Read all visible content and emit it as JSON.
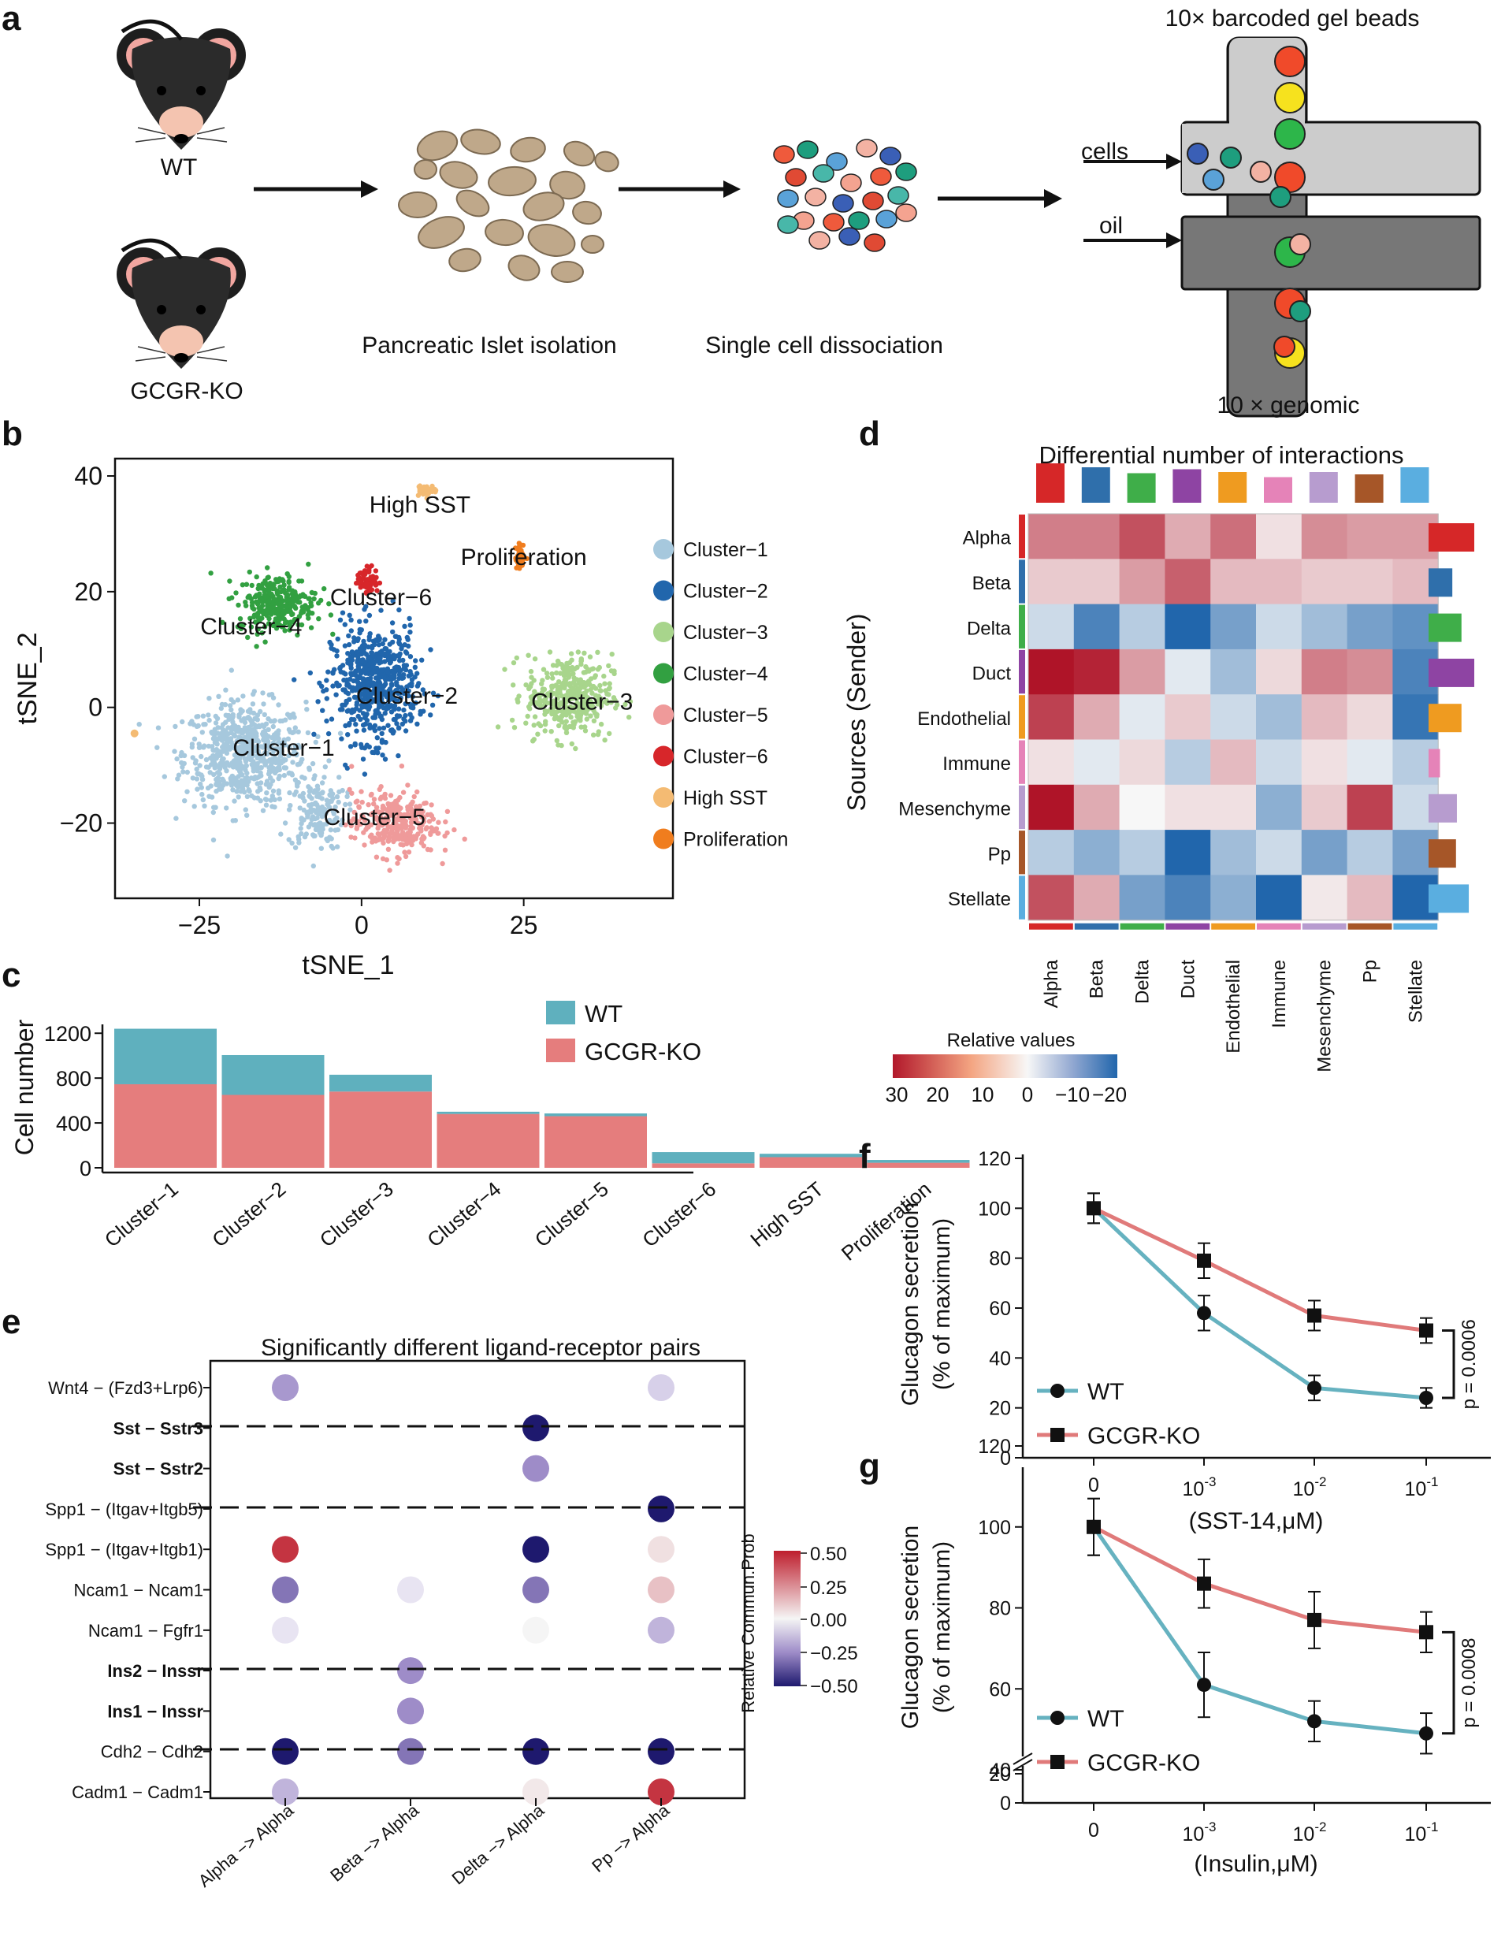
{
  "panel_labels": [
    "a",
    "b",
    "c",
    "d",
    "e",
    "f",
    "g"
  ],
  "colors": {
    "cluster_1": "#a6c8dd",
    "cluster_2": "#2166ac",
    "cluster_3": "#a8d58c",
    "cluster_4": "#32a041",
    "cluster_5": "#ef9a9a",
    "cluster_6": "#d7262a",
    "high_sst": "#f4bb73",
    "proliferation": "#f07d1e",
    "wt": "#5fb0be",
    "gcgr_ko": "#e57d7d",
    "wt_line": "#66b2c0",
    "ko_line": "#e07a7a"
  },
  "panel_a": {
    "labels": {
      "wt": "WT",
      "ko": "GCGR-KO",
      "islet": "Pancreatic Islet isolation",
      "single": "Single cell dissociation",
      "beads": "10× barcoded gel beads",
      "genomic": "10 × genomic",
      "cells": "cells",
      "oil": "oil"
    }
  },
  "panel_b": {
    "chart_data": {
      "type": "scatter",
      "xlabel": "tSNE_1",
      "ylabel": "tSNE_2",
      "xticks": [
        "−25",
        "0",
        "25"
      ],
      "yticks": [
        "40",
        "20",
        "0",
        "−20"
      ],
      "xlim": [
        -38,
        48
      ],
      "ylim": [
        -33,
        43
      ],
      "cluster_labels": [
        "Cluster−1",
        "Cluster−2",
        "Cluster−3",
        "Cluster−4",
        "Cluster−5",
        "Cluster−6",
        "High SST",
        "Proliferation"
      ],
      "legend": [
        "Cluster−1",
        "Cluster−2",
        "Cluster−3",
        "Cluster−4",
        "Cluster−5",
        "Cluster−6",
        "High SST",
        "Proliferation"
      ]
    }
  },
  "panel_c": {
    "chart_data": {
      "type": "bar",
      "ylabel": "Cell number",
      "yticks": [
        "1200",
        "800",
        "400",
        "0"
      ],
      "ylim": [
        0,
        1300
      ],
      "categories": [
        "Cluster−1",
        "Cluster−2",
        "Cluster−3",
        "Cluster−4",
        "Cluster−5",
        "Cluster−6",
        "High SST",
        "Proliferation"
      ],
      "series": [
        {
          "name": "GCGR-KO",
          "values": [
            745,
            650,
            680,
            480,
            460,
            40,
            95,
            45
          ]
        },
        {
          "name": "WT",
          "values": [
            495,
            355,
            150,
            20,
            25,
            100,
            30,
            25
          ]
        }
      ],
      "stacked": true,
      "legend": [
        "WT",
        "GCGR-KO"
      ]
    }
  },
  "panel_d": {
    "chart_data": {
      "type": "heatmap",
      "title": "Differential number of interactions",
      "ylabel": "Sources (Sender)",
      "rows": [
        "Alpha",
        "Beta",
        "Delta",
        "Duct",
        "Endothelial",
        "Immune",
        "Mesenchyme",
        "Pp",
        "Stellate"
      ],
      "cols": [
        "Alpha",
        "Beta",
        "Delta",
        "Duct",
        "Endothelial",
        "Immune",
        "Mesenchyme",
        "Pp",
        "Stellate"
      ],
      "values": [
        [
          16,
          16,
          22,
          10,
          18,
          3,
          14,
          12,
          12
        ],
        [
          6,
          6,
          12,
          20,
          8,
          8,
          6,
          6,
          8
        ],
        [
          -4,
          -16,
          -6,
          -20,
          -12,
          -4,
          -8,
          -12,
          -14
        ],
        [
          32,
          28,
          12,
          -2,
          -8,
          4,
          16,
          14,
          -16
        ],
        [
          24,
          10,
          -2,
          6,
          -4,
          -8,
          8,
          4,
          -18
        ],
        [
          3,
          -2,
          4,
          -6,
          8,
          -4,
          3,
          -2,
          -6
        ],
        [
          32,
          10,
          0,
          3,
          3,
          -10,
          6,
          24,
          -4
        ],
        [
          -6,
          -10,
          -6,
          -20,
          -8,
          -4,
          -12,
          -6,
          -12
        ],
        [
          22,
          10,
          -12,
          -16,
          -10,
          -22,
          2,
          8,
          -20
        ]
      ],
      "row_sums": [
        1.0,
        0.52,
        0.72,
        1.0,
        0.72,
        0.25,
        0.62,
        0.6,
        0.88
      ],
      "col_sums": [
        1.0,
        0.9,
        0.75,
        0.85,
        0.78,
        0.65,
        0.78,
        0.72,
        0.9
      ],
      "legend_title": "Relative values",
      "legend_ticks": [
        "30",
        "20",
        "10",
        "0",
        "−10",
        "−20"
      ],
      "range": [
        30,
        -20
      ],
      "group_colors": [
        "#d62728",
        "#2f6fab",
        "#3fae49",
        "#8e44a3",
        "#ef9b20",
        "#e583b8",
        "#b79ccf",
        "#a65628",
        "#5aaee0"
      ]
    }
  },
  "panel_e": {
    "chart_data": {
      "type": "scatter",
      "title": "Significantly different ligand-receptor pairs",
      "rows": [
        "Wnt4  − (Fzd3+Lrp6)",
        "Sst  − Sstr3",
        "Sst  − Sstr2",
        "Spp1  − (Itgav+Itgb5)",
        "Spp1  − (Itgav+Itgb1)",
        "Ncam1  − Ncam1",
        "Ncam1  − Fgfr1",
        "Ins2  − Inssr",
        "Ins1  − Inssr",
        "Cdh2  − Cdh2",
        "Cadm1  − Cadm1"
      ],
      "bold_rows": [
        false,
        true,
        true,
        false,
        false,
        false,
        false,
        true,
        true,
        false,
        false
      ],
      "cols": [
        "Alpha −> Alpha",
        "Beta −> Alpha",
        "Delta −> Alpha",
        "Pp −> Alpha"
      ],
      "values": [
        [
          -0.22,
          null,
          null,
          -0.08
        ],
        [
          null,
          null,
          -0.55,
          null
        ],
        [
          null,
          null,
          -0.25,
          null
        ],
        [
          null,
          null,
          null,
          -0.55
        ],
        [
          0.45,
          null,
          -0.52,
          0.05
        ],
        [
          -0.3,
          -0.03,
          -0.3,
          0.12
        ],
        [
          -0.03,
          null,
          0.0,
          -0.15
        ],
        [
          null,
          -0.25,
          null,
          null
        ],
        [
          null,
          -0.25,
          null,
          null
        ],
        [
          -0.52,
          -0.3,
          -0.6,
          -0.52
        ],
        [
          -0.15,
          null,
          0.03,
          0.45
        ]
      ],
      "legend_title": "Relative Commun.Prob",
      "legend_ticks": [
        "0.50",
        "0.25",
        "0.00",
        "−0.25",
        "−0.50"
      ],
      "range": [
        -0.5,
        0.5
      ]
    }
  },
  "panel_f": {
    "chart_data": {
      "type": "line",
      "xlabel": "(SST-14,μM)",
      "ylabel": "Glucagon secretion",
      "ylabel2": "(% of maximum)",
      "ylim": [
        0,
        120
      ],
      "yticks": [
        "0",
        "20",
        "40",
        "60",
        "80",
        "100",
        "120"
      ],
      "x": [
        "0",
        "10⁻³",
        "10⁻²",
        "10⁻¹"
      ],
      "x_base": "10",
      "x_exp": [
        "-3",
        "-2",
        "-1"
      ],
      "series": [
        {
          "name": "WT",
          "values": [
            100,
            58,
            28,
            24
          ],
          "err": [
            6,
            7,
            5,
            4
          ]
        },
        {
          "name": "GCGR-KO",
          "values": [
            100,
            79,
            57,
            51
          ],
          "err": [
            6,
            7,
            6,
            5
          ]
        }
      ],
      "p_value": "p = 0.0006"
    }
  },
  "panel_g": {
    "chart_data": {
      "type": "line",
      "xlabel": "(Insulin,μM)",
      "ylabel": "Glucagon secretion",
      "ylabel2": "(% of maximum)",
      "yticks": [
        "0",
        "20",
        "40",
        "60",
        "80",
        "100",
        "120"
      ],
      "axis_break": true,
      "x": [
        "0",
        "10⁻³",
        "10⁻²",
        "10⁻¹"
      ],
      "x_base": "10",
      "x_exp": [
        "-3",
        "-2",
        "-1"
      ],
      "series": [
        {
          "name": "WT",
          "values": [
            100,
            61,
            52,
            49
          ],
          "err": [
            7,
            8,
            5,
            5
          ]
        },
        {
          "name": "GCGR-KO",
          "values": [
            100,
            86,
            77,
            74
          ],
          "err": [
            7,
            6,
            7,
            5
          ]
        }
      ],
      "p_value": "p = 0.0008"
    }
  }
}
